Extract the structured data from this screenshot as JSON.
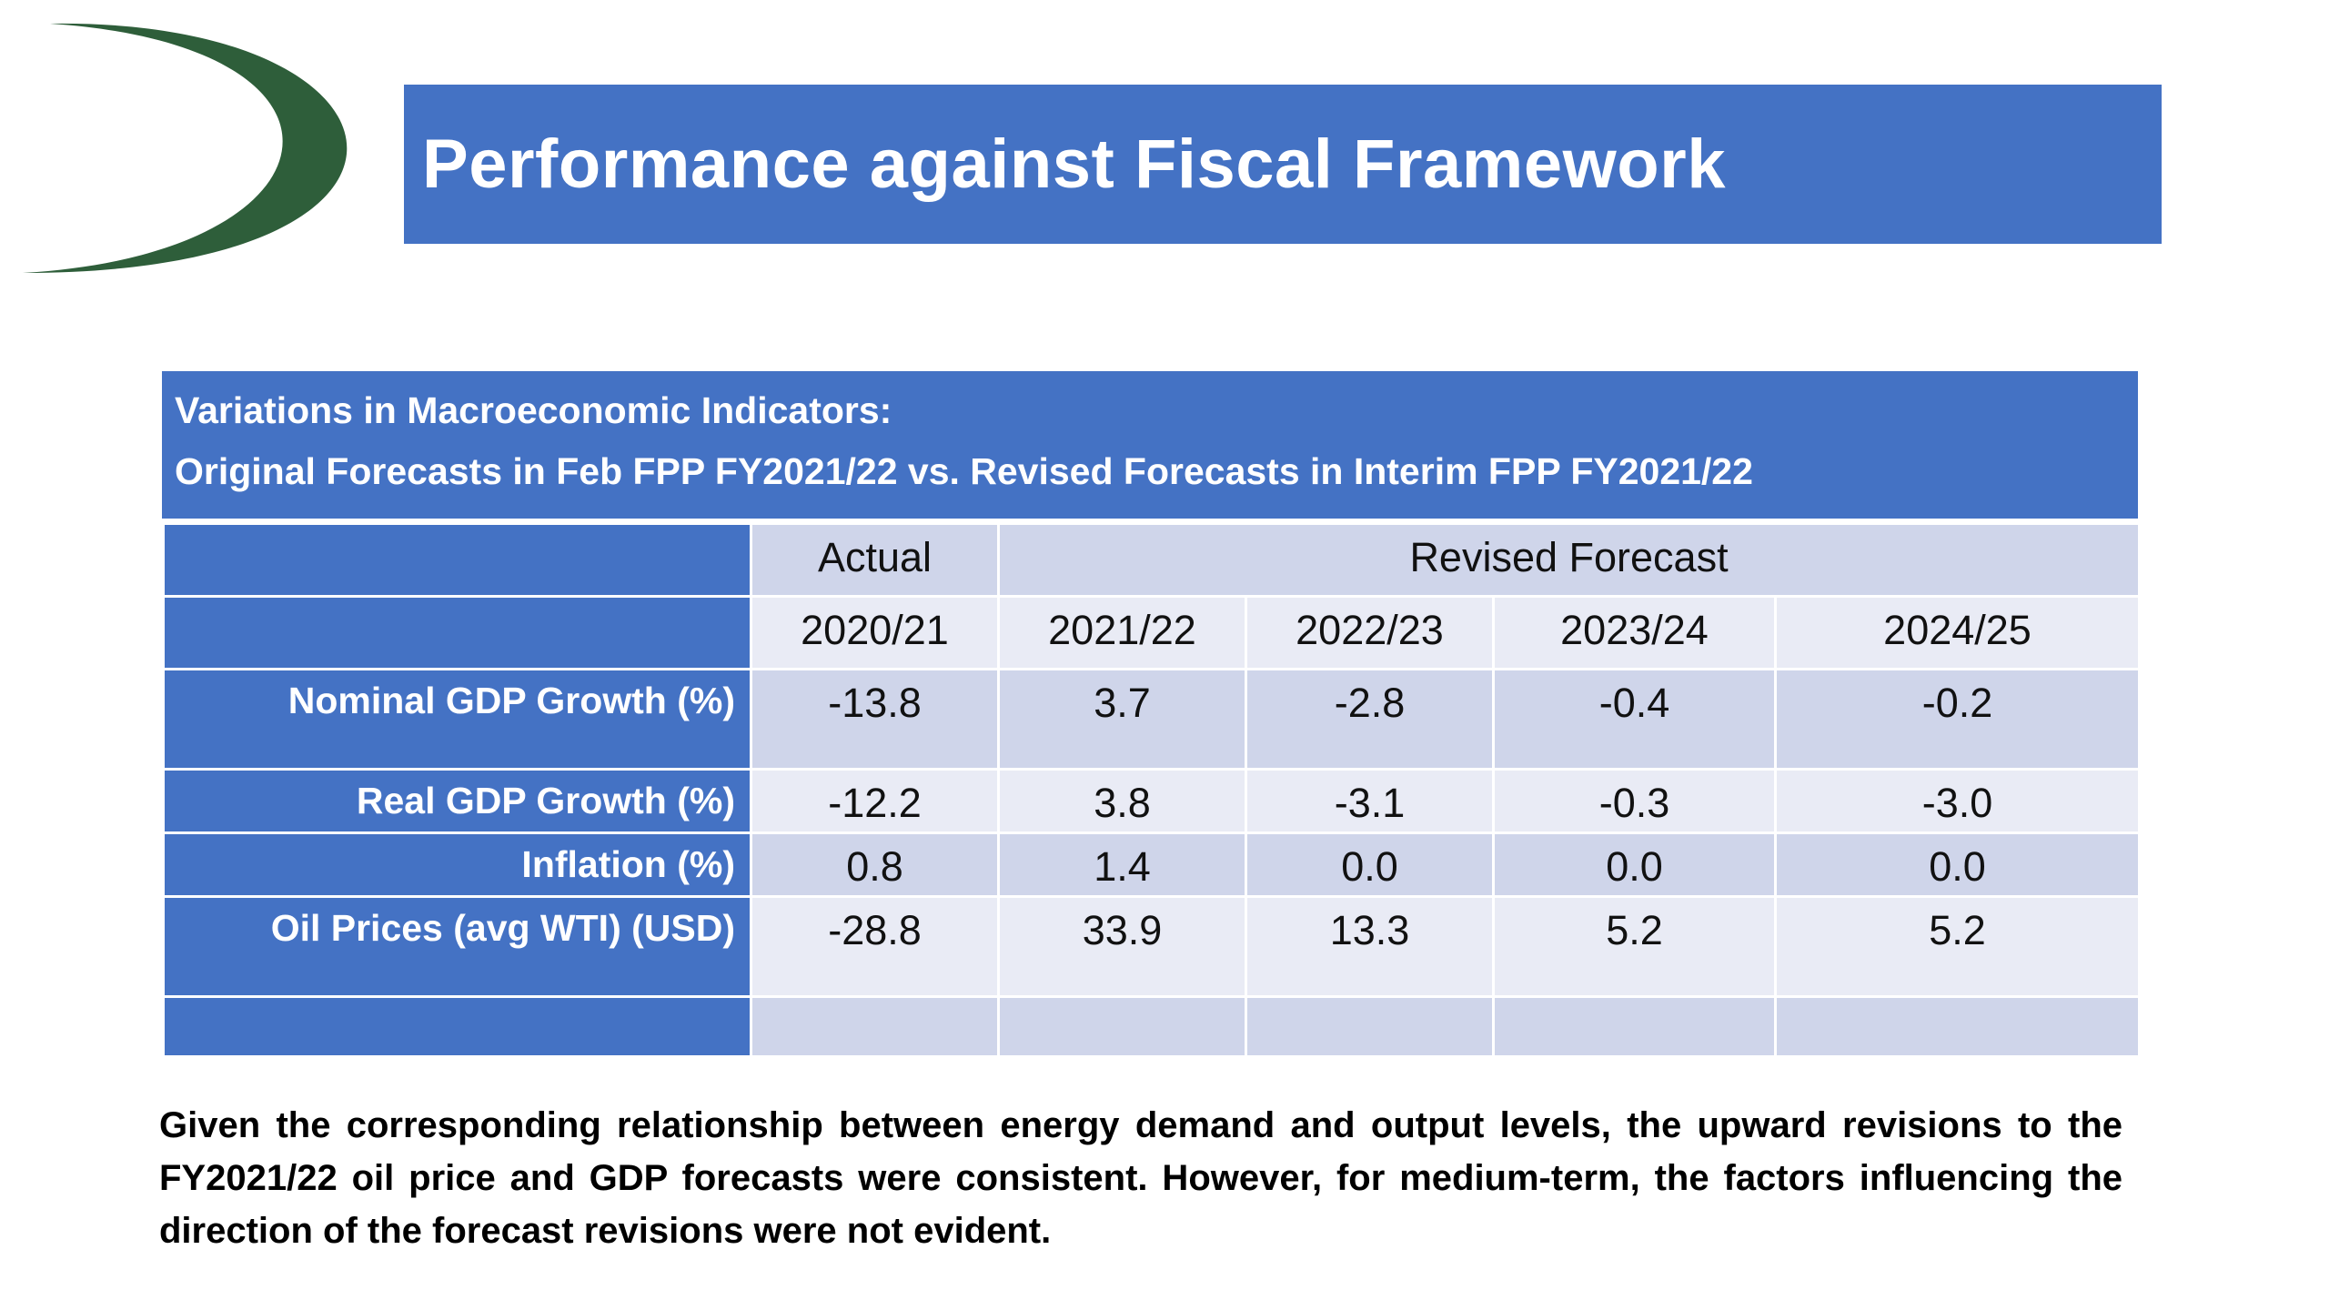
{
  "title": "Performance against Fiscal Framework",
  "table_title": {
    "line1": "Variations in Macroeconomic Indicators:",
    "line2": "Original Forecasts in Feb FPP FY2021/22 vs. Revised Forecasts in Interim FPP FY2021/22"
  },
  "table": {
    "group_headers": {
      "actual": "Actual",
      "revised": "Revised Forecast"
    },
    "years": [
      "2020/21",
      "2021/22",
      "2022/23",
      "2023/24",
      "2024/25"
    ],
    "rows": [
      {
        "label": "Nominal GDP Growth (%)",
        "values": [
          "-13.8",
          "3.7",
          "-2.8",
          "-0.4",
          "-0.2"
        ]
      },
      {
        "label": "Real GDP Growth (%)",
        "values": [
          "-12.2",
          "3.8",
          "-3.1",
          "-0.3",
          "-3.0"
        ]
      },
      {
        "label": "Inflation (%)",
        "values": [
          "0.8",
          "1.4",
          "0.0",
          "0.0",
          "0.0"
        ]
      },
      {
        "label": "Oil Prices (avg WTI) (USD)",
        "values": [
          "-28.8",
          "33.9",
          "13.3",
          "5.2",
          "5.2"
        ]
      }
    ]
  },
  "note": "Given the corresponding relationship between energy demand and output levels, the upward revisions to the FY2021/22 oil price and GDP forecasts were consistent.  However, for medium-term, the factors influencing the direction of the forecast revisions were not evident.",
  "colors": {
    "accent": "#4472c4",
    "row_dark": "#cfd5ea",
    "row_light": "#e9ebf5",
    "logo_green": "#2e5e3a"
  }
}
